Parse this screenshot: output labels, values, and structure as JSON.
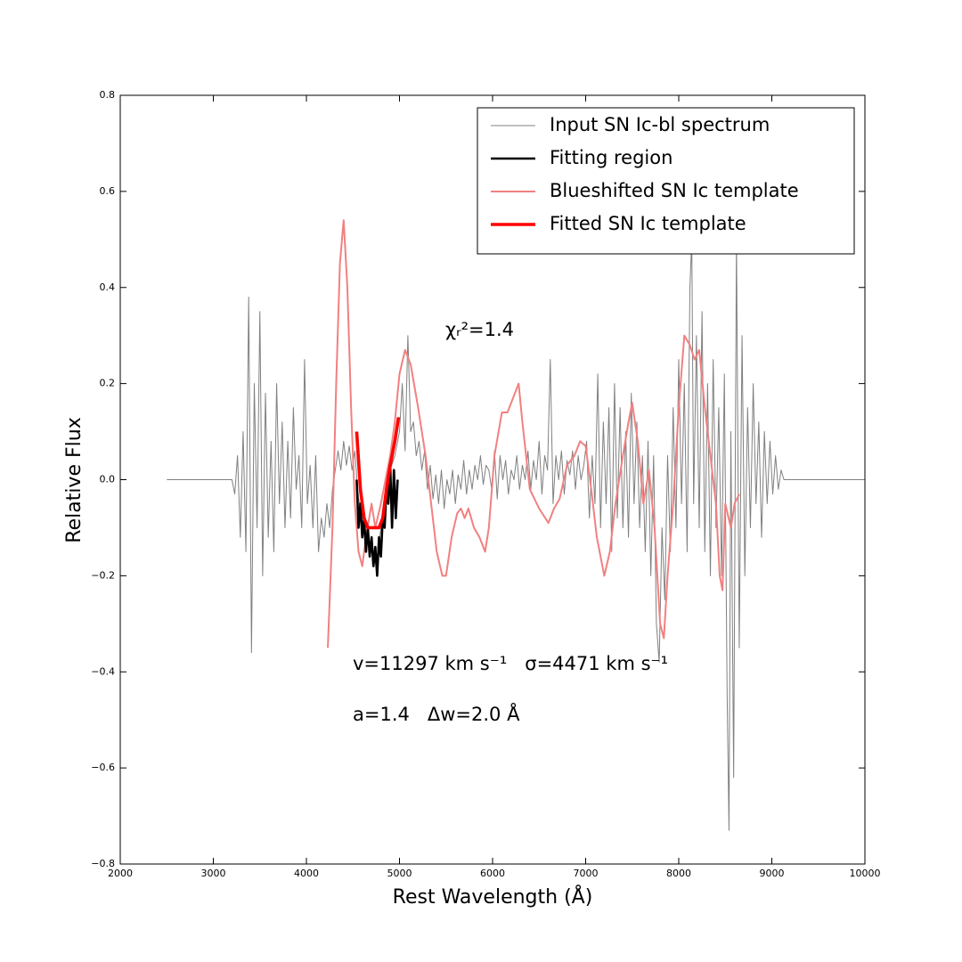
{
  "chart_data": {
    "type": "line",
    "xlabel": "Rest Wavelength (Å)",
    "ylabel": "Relative Flux",
    "xlim": [
      2000,
      10000
    ],
    "ylim": [
      -0.8,
      0.8
    ],
    "xticks": [
      2000,
      3000,
      4000,
      5000,
      6000,
      7000,
      8000,
      9000,
      10000
    ],
    "yticks": [
      {
        "value": -0.8,
        "label": "−0.8"
      },
      {
        "value": -0.6,
        "label": "−0.6"
      },
      {
        "value": -0.4,
        "label": "−0.4"
      },
      {
        "value": -0.2,
        "label": "−0.2"
      },
      {
        "value": 0,
        "label": "0.0"
      },
      0.2,
      0.4,
      0.6,
      0.8
    ],
    "legend": "upper right",
    "grid": false,
    "annotations": [
      "χᵣ²=1.4",
      "v=11297 km s⁻¹   σ=4471 km s⁻¹",
      "a=1.4   Δw=2.0 Å"
    ],
    "series": [
      {
        "name": "Input SN Ic-bl spectrum",
        "color": "#808080",
        "x": [
          2500,
          3200,
          3230,
          3260,
          3290,
          3320,
          3350,
          3380,
          3410,
          3440,
          3470,
          3500,
          3530,
          3560,
          3590,
          3620,
          3650,
          3680,
          3710,
          3740,
          3770,
          3800,
          3830,
          3860,
          3890,
          3920,
          3950,
          3980,
          4010,
          4040,
          4070,
          4100,
          4130,
          4160,
          4190,
          4220,
          4250,
          4280,
          4310,
          4340,
          4370,
          4400,
          4430,
          4460,
          4490,
          4520,
          4550,
          4600,
          4650,
          4700,
          4750,
          4800,
          4850,
          4900,
          4950,
          5000,
          5030,
          5060,
          5090,
          5120,
          5150,
          5180,
          5210,
          5240,
          5270,
          5300,
          5330,
          5360,
          5390,
          5420,
          5450,
          5480,
          5510,
          5540,
          5570,
          5600,
          5630,
          5660,
          5690,
          5720,
          5750,
          5780,
          5810,
          5840,
          5870,
          5900,
          5930,
          5960,
          5990,
          6020,
          6050,
          6080,
          6110,
          6140,
          6170,
          6200,
          6230,
          6260,
          6290,
          6320,
          6350,
          6380,
          6410,
          6440,
          6470,
          6500,
          6530,
          6560,
          6590,
          6620,
          6650,
          6680,
          6710,
          6740,
          6770,
          6800,
          6830,
          6860,
          6890,
          6920,
          6950,
          6980,
          7010,
          7040,
          7070,
          7100,
          7130,
          7160,
          7190,
          7220,
          7250,
          7280,
          7310,
          7340,
          7370,
          7400,
          7430,
          7460,
          7490,
          7520,
          7550,
          7580,
          7610,
          7640,
          7670,
          7700,
          7730,
          7760,
          7790,
          7820,
          7850,
          7880,
          7910,
          7940,
          7970,
          8000,
          8030,
          8060,
          8090,
          8120,
          8140,
          8160,
          8190,
          8220,
          8250,
          8280,
          8310,
          8340,
          8370,
          8400,
          8430,
          8460,
          8490,
          8520,
          8540,
          8560,
          8590,
          8620,
          8650,
          8680,
          8710,
          8740,
          8770,
          8800,
          8830,
          8860,
          8890,
          8920,
          8950,
          8980,
          9010,
          9040,
          9070,
          9100,
          9130,
          9160,
          10000
        ],
        "values": [
          0,
          0,
          -0.03,
          0.05,
          -0.12,
          0.1,
          -0.15,
          0.38,
          -0.36,
          0.2,
          -0.1,
          0.35,
          -0.2,
          0.18,
          -0.12,
          0.08,
          -0.15,
          0.2,
          -0.05,
          0.12,
          -0.1,
          0.08,
          -0.08,
          0.15,
          -0.02,
          0.05,
          -0.1,
          0.25,
          -0.05,
          0.03,
          -0.1,
          0.05,
          -0.15,
          -0.08,
          -0.12,
          -0.05,
          -0.1,
          -0.02,
          0.02,
          0.06,
          0.02,
          0.08,
          0.03,
          0.07,
          0.02,
          0.06,
          -0.02,
          -0.1,
          -0.12,
          -0.14,
          -0.18,
          -0.1,
          -0.03,
          0.02,
          0.05,
          0.1,
          0.2,
          0.06,
          0.3,
          0.1,
          0.12,
          0.05,
          0.08,
          0.02,
          0.06,
          -0.02,
          0.03,
          -0.04,
          0.01,
          -0.05,
          0.02,
          -0.06,
          0,
          -0.03,
          0.02,
          -0.05,
          0.01,
          -0.02,
          0.04,
          -0.03,
          0.02,
          -0.02,
          0.03,
          0,
          0.05,
          -0.01,
          0.03,
          0.02,
          -0.02,
          0.06,
          -0.04,
          0.05,
          0,
          0.04,
          -0.03,
          0.02,
          0,
          0.05,
          -0.02,
          0.03,
          0,
          0.06,
          -0.02,
          0.04,
          0,
          0.08,
          -0.03,
          0.05,
          0.02,
          0.25,
          -0.05,
          0.05,
          0,
          0.06,
          -0.03,
          0.04,
          0.01,
          0.06,
          -0.02,
          0.05,
          0,
          0.03,
          0.08,
          -0.08,
          0.05,
          -0.05,
          0.22,
          -0.1,
          0.12,
          -0.05,
          0.15,
          -0.15,
          0.2,
          -0.08,
          0.15,
          -0.1,
          0.1,
          -0.12,
          0.18,
          -0.05,
          0.12,
          -0.1,
          0.05,
          -0.15,
          0.08,
          -0.2,
          0.05,
          -0.3,
          -0.38,
          -0.1,
          -0.25,
          0.05,
          -0.15,
          0.15,
          -0.1,
          0.25,
          -0.05,
          0.2,
          -0.15,
          0.4,
          0.5,
          -0.05,
          0.3,
          -0.1,
          0.35,
          -0.15,
          0.2,
          -0.2,
          0.25,
          -0.1,
          0.15,
          -0.2,
          0.22,
          -0.45,
          -0.73,
          0.1,
          -0.62,
          0.5,
          -0.35,
          0.3,
          -0.2,
          0.15,
          -0.1,
          0.2,
          -0.05,
          0.12,
          -0.12,
          0.1,
          -0.05,
          0.08,
          -0.03,
          0.05,
          -0.02,
          0.02,
          0,
          0,
          0
        ]
      },
      {
        "name": "Fitting region",
        "color": "#000000",
        "x": [
          4540,
          4560,
          4580,
          4600,
          4620,
          4640,
          4660,
          4680,
          4700,
          4720,
          4740,
          4760,
          4780,
          4800,
          4820,
          4840,
          4860,
          4880,
          4900,
          4920,
          4940,
          4960,
          4980
        ],
        "values": [
          0,
          -0.1,
          -0.05,
          -0.12,
          -0.08,
          -0.15,
          -0.1,
          -0.16,
          -0.12,
          -0.18,
          -0.14,
          -0.2,
          -0.12,
          -0.16,
          -0.08,
          -0.1,
          -0.02,
          -0.05,
          0.03,
          -0.1,
          0.02,
          -0.08,
          0
        ]
      },
      {
        "name": "Blueshifted SN Ic template",
        "color": "#f28080",
        "x": [
          4230,
          4280,
          4320,
          4360,
          4400,
          4440,
          4480,
          4520,
          4560,
          4600,
          4640,
          4700,
          4740,
          4800,
          4850,
          4900,
          4950,
          5000,
          5060,
          5120,
          5200,
          5280,
          5340,
          5400,
          5460,
          5500,
          5560,
          5620,
          5660,
          5700,
          5740,
          5800,
          5860,
          5920,
          5960,
          6020,
          6100,
          6160,
          6220,
          6280,
          6320,
          6400,
          6500,
          6600,
          6660,
          6720,
          6800,
          6880,
          6940,
          7000,
          7060,
          7120,
          7200,
          7260,
          7320,
          7400,
          7460,
          7500,
          7560,
          7620,
          7680,
          7740,
          7800,
          7840,
          7880,
          7940,
          8000,
          8060,
          8120,
          8170,
          8220,
          8280,
          8340,
          8400,
          8440,
          8470,
          8500,
          8560,
          8600,
          8650
        ],
        "values": [
          -0.35,
          -0.1,
          0.2,
          0.45,
          0.54,
          0.4,
          0.15,
          -0.05,
          -0.15,
          -0.18,
          -0.12,
          -0.05,
          -0.1,
          -0.05,
          0,
          0.05,
          0.12,
          0.22,
          0.27,
          0.24,
          0.15,
          0.05,
          -0.05,
          -0.15,
          -0.2,
          -0.2,
          -0.12,
          -0.07,
          -0.06,
          -0.08,
          -0.06,
          -0.1,
          -0.12,
          -0.15,
          -0.1,
          0.05,
          0.14,
          0.14,
          0.17,
          0.2,
          0.12,
          -0.02,
          -0.06,
          -0.09,
          -0.06,
          -0.04,
          0.03,
          0.05,
          0.08,
          0.07,
          -0.02,
          -0.12,
          -0.2,
          -0.15,
          -0.05,
          0.05,
          0.12,
          0.16,
          0.08,
          -0.05,
          0.02,
          -0.1,
          -0.3,
          -0.33,
          -0.2,
          -0.05,
          0.15,
          0.3,
          0.28,
          0.25,
          0.27,
          0.15,
          0.05,
          -0.05,
          -0.2,
          -0.23,
          -0.05,
          -0.1,
          -0.05,
          -0.03
        ]
      },
      {
        "name": "Fitted SN Ic template",
        "color": "#ff0000",
        "x": [
          4540,
          4580,
          4620,
          4660,
          4700,
          4740,
          4780,
          4820,
          4860,
          4900,
          4950,
          4990
        ],
        "values": [
          0.1,
          -0.02,
          -0.08,
          -0.1,
          -0.1,
          -0.1,
          -0.1,
          -0.08,
          -0.02,
          0.03,
          0.08,
          0.13
        ]
      }
    ]
  }
}
